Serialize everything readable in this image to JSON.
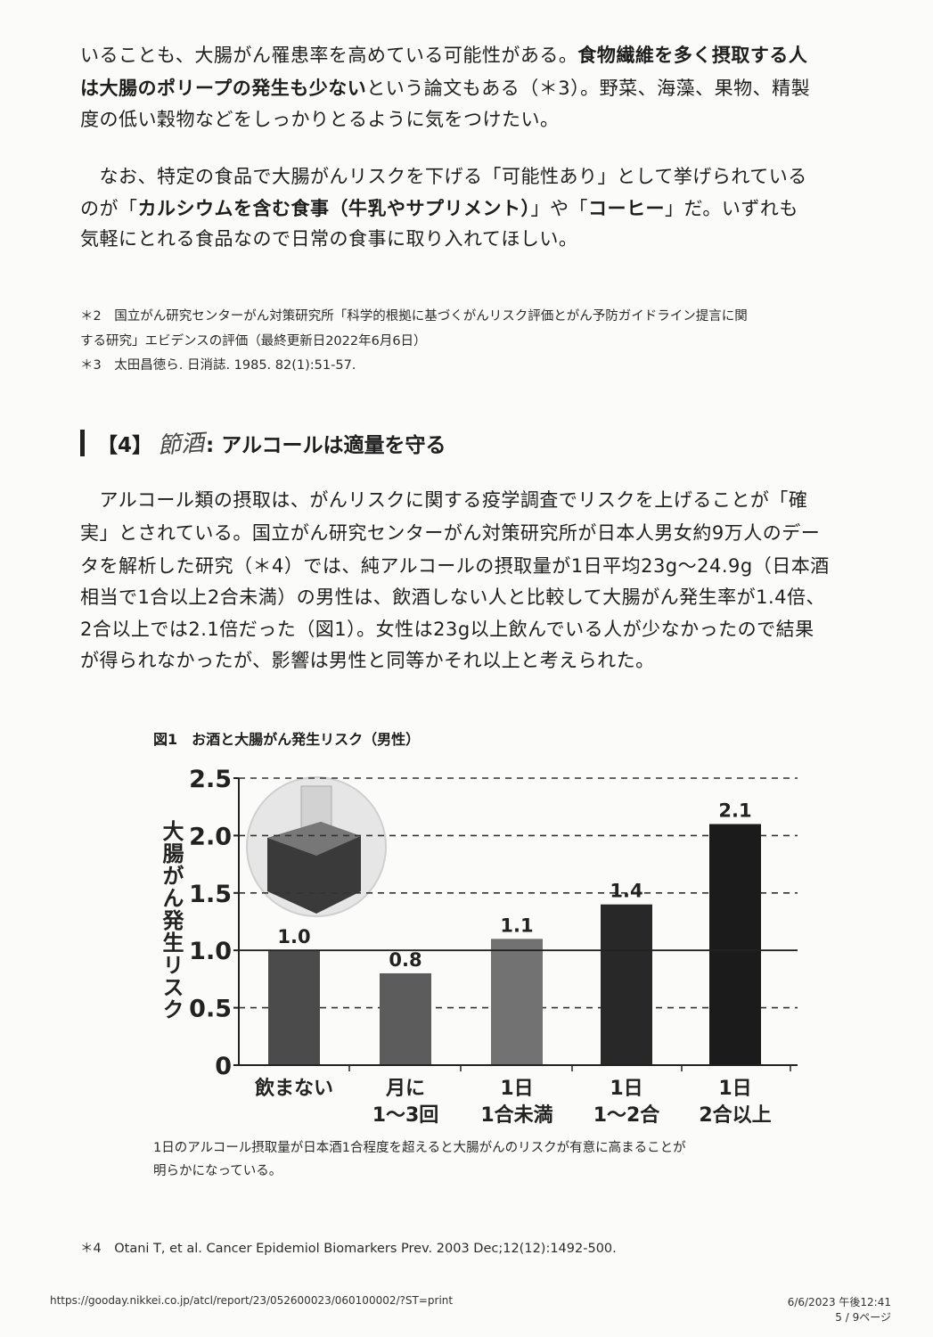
{
  "paragraph1": [
    [
      {
        "text": "いることも、大腸がん罹患率を高めている可能性がある。",
        "bold": false
      },
      {
        "text": "食物繊維を多く摂取する人",
        "bold": true
      }
    ],
    [
      {
        "text": "は大腸のポリープの発生も少ない",
        "bold": true
      },
      {
        "text": "という論文もある（＊3）。野菜、海藻、果物、精製",
        "bold": false
      }
    ],
    [
      {
        "text": "度の低い穀物などをしっかりとるように気をつけたい。",
        "bold": false
      }
    ]
  ],
  "paragraph2": [
    [
      {
        "text": "　なお、特定の食品で大腸がんリスクを下げる「可能性あり」として挙げられている",
        "bold": false
      }
    ],
    [
      {
        "text": "のが「",
        "bold": false
      },
      {
        "text": "カルシウムを含む食事（牛乳やサプリメント）",
        "bold": true
      },
      {
        "text": "」や「",
        "bold": false
      },
      {
        "text": "コーヒー",
        "bold": true
      },
      {
        "text": "」だ。いずれも",
        "bold": false
      }
    ],
    [
      {
        "text": "気軽にとれる食品なので日常の食事に取り入れてほしい。",
        "bold": false
      }
    ]
  ],
  "footnotes_top": [
    "＊2　国立がん研究センターがん対策研究所「科学的根拠に基づくがんリスク評価とがん予防ガイドライン提言に関",
    "する研究」エビデンスの評価（最終更新日2022年6月6日）",
    "＊3　太田昌徳ら. 日消誌. 1985. 82(1):51-57."
  ],
  "section_heading": {
    "number": "【4】",
    "handwritten": "節酒",
    "title": ": アルコールは適量を守る"
  },
  "paragraph3": [
    "　アルコール類の摂取は、がんリスクに関する疫学調査でリスクを上げることが「確",
    "実」とされている。国立がん研究センターがん対策研究所が日本人男女約9万人のデー",
    "タを解析した研究（＊4）では、純アルコールの摂取量が1日平均23g〜24.9g（日本酒",
    "相当で1合以上2合未満）の男性は、飲酒しない人と比較して大腸がん発生率が1.4倍、",
    "2合以上では2.1倍だった（図1）。女性は23g以上飲んでいる人が少なかったので結果",
    "が得られなかったが、影響は男性と同等かそれ以上と考えられた。"
  ],
  "chart_data": {
    "type": "bar",
    "title": "図1　お酒と大腸がん発生リスク（男性）",
    "ylabel": "大腸がん発生リスク",
    "xlabel": "",
    "categories": [
      [
        "飲まない"
      ],
      [
        "月に",
        "1〜3回"
      ],
      [
        "1日",
        "1合未満"
      ],
      [
        "1日",
        "1〜2合"
      ],
      [
        "1日",
        "2合以上"
      ]
    ],
    "values": [
      1.0,
      0.8,
      1.1,
      1.4,
      2.1
    ],
    "data_labels": [
      "1.0",
      "0.8",
      "1.1",
      "1.4",
      "2.1"
    ],
    "bar_colors": [
      "#4b4b4b",
      "#5c5c5c",
      "#727272",
      "#282828",
      "#1b1b1b"
    ],
    "ylim": [
      0,
      2.5
    ],
    "yticks": [
      "0",
      "0.5",
      "1.0",
      "1.5",
      "2.0",
      "2.5"
    ],
    "reference_line": 1.0,
    "grid": "dashed horizontal",
    "illustration": "sake-masu-cup"
  },
  "chart_caption": [
    "1日のアルコール摂取量が日本酒1合程度を超えると大腸がんのリスクが有意に高まることが",
    "明らかになっている。"
  ],
  "footnote4": "＊4　Otani T, et al. Cancer Epidemiol Biomarkers Prev. 2003 Dec;12(12):1492-500.",
  "print_footer": {
    "url": "https://gooday.nikkei.co.jp/atcl/report/23/052600023/060100002/?ST=print",
    "datetime": "6/6/2023 午後12:41",
    "page": "5 / 9ページ"
  }
}
